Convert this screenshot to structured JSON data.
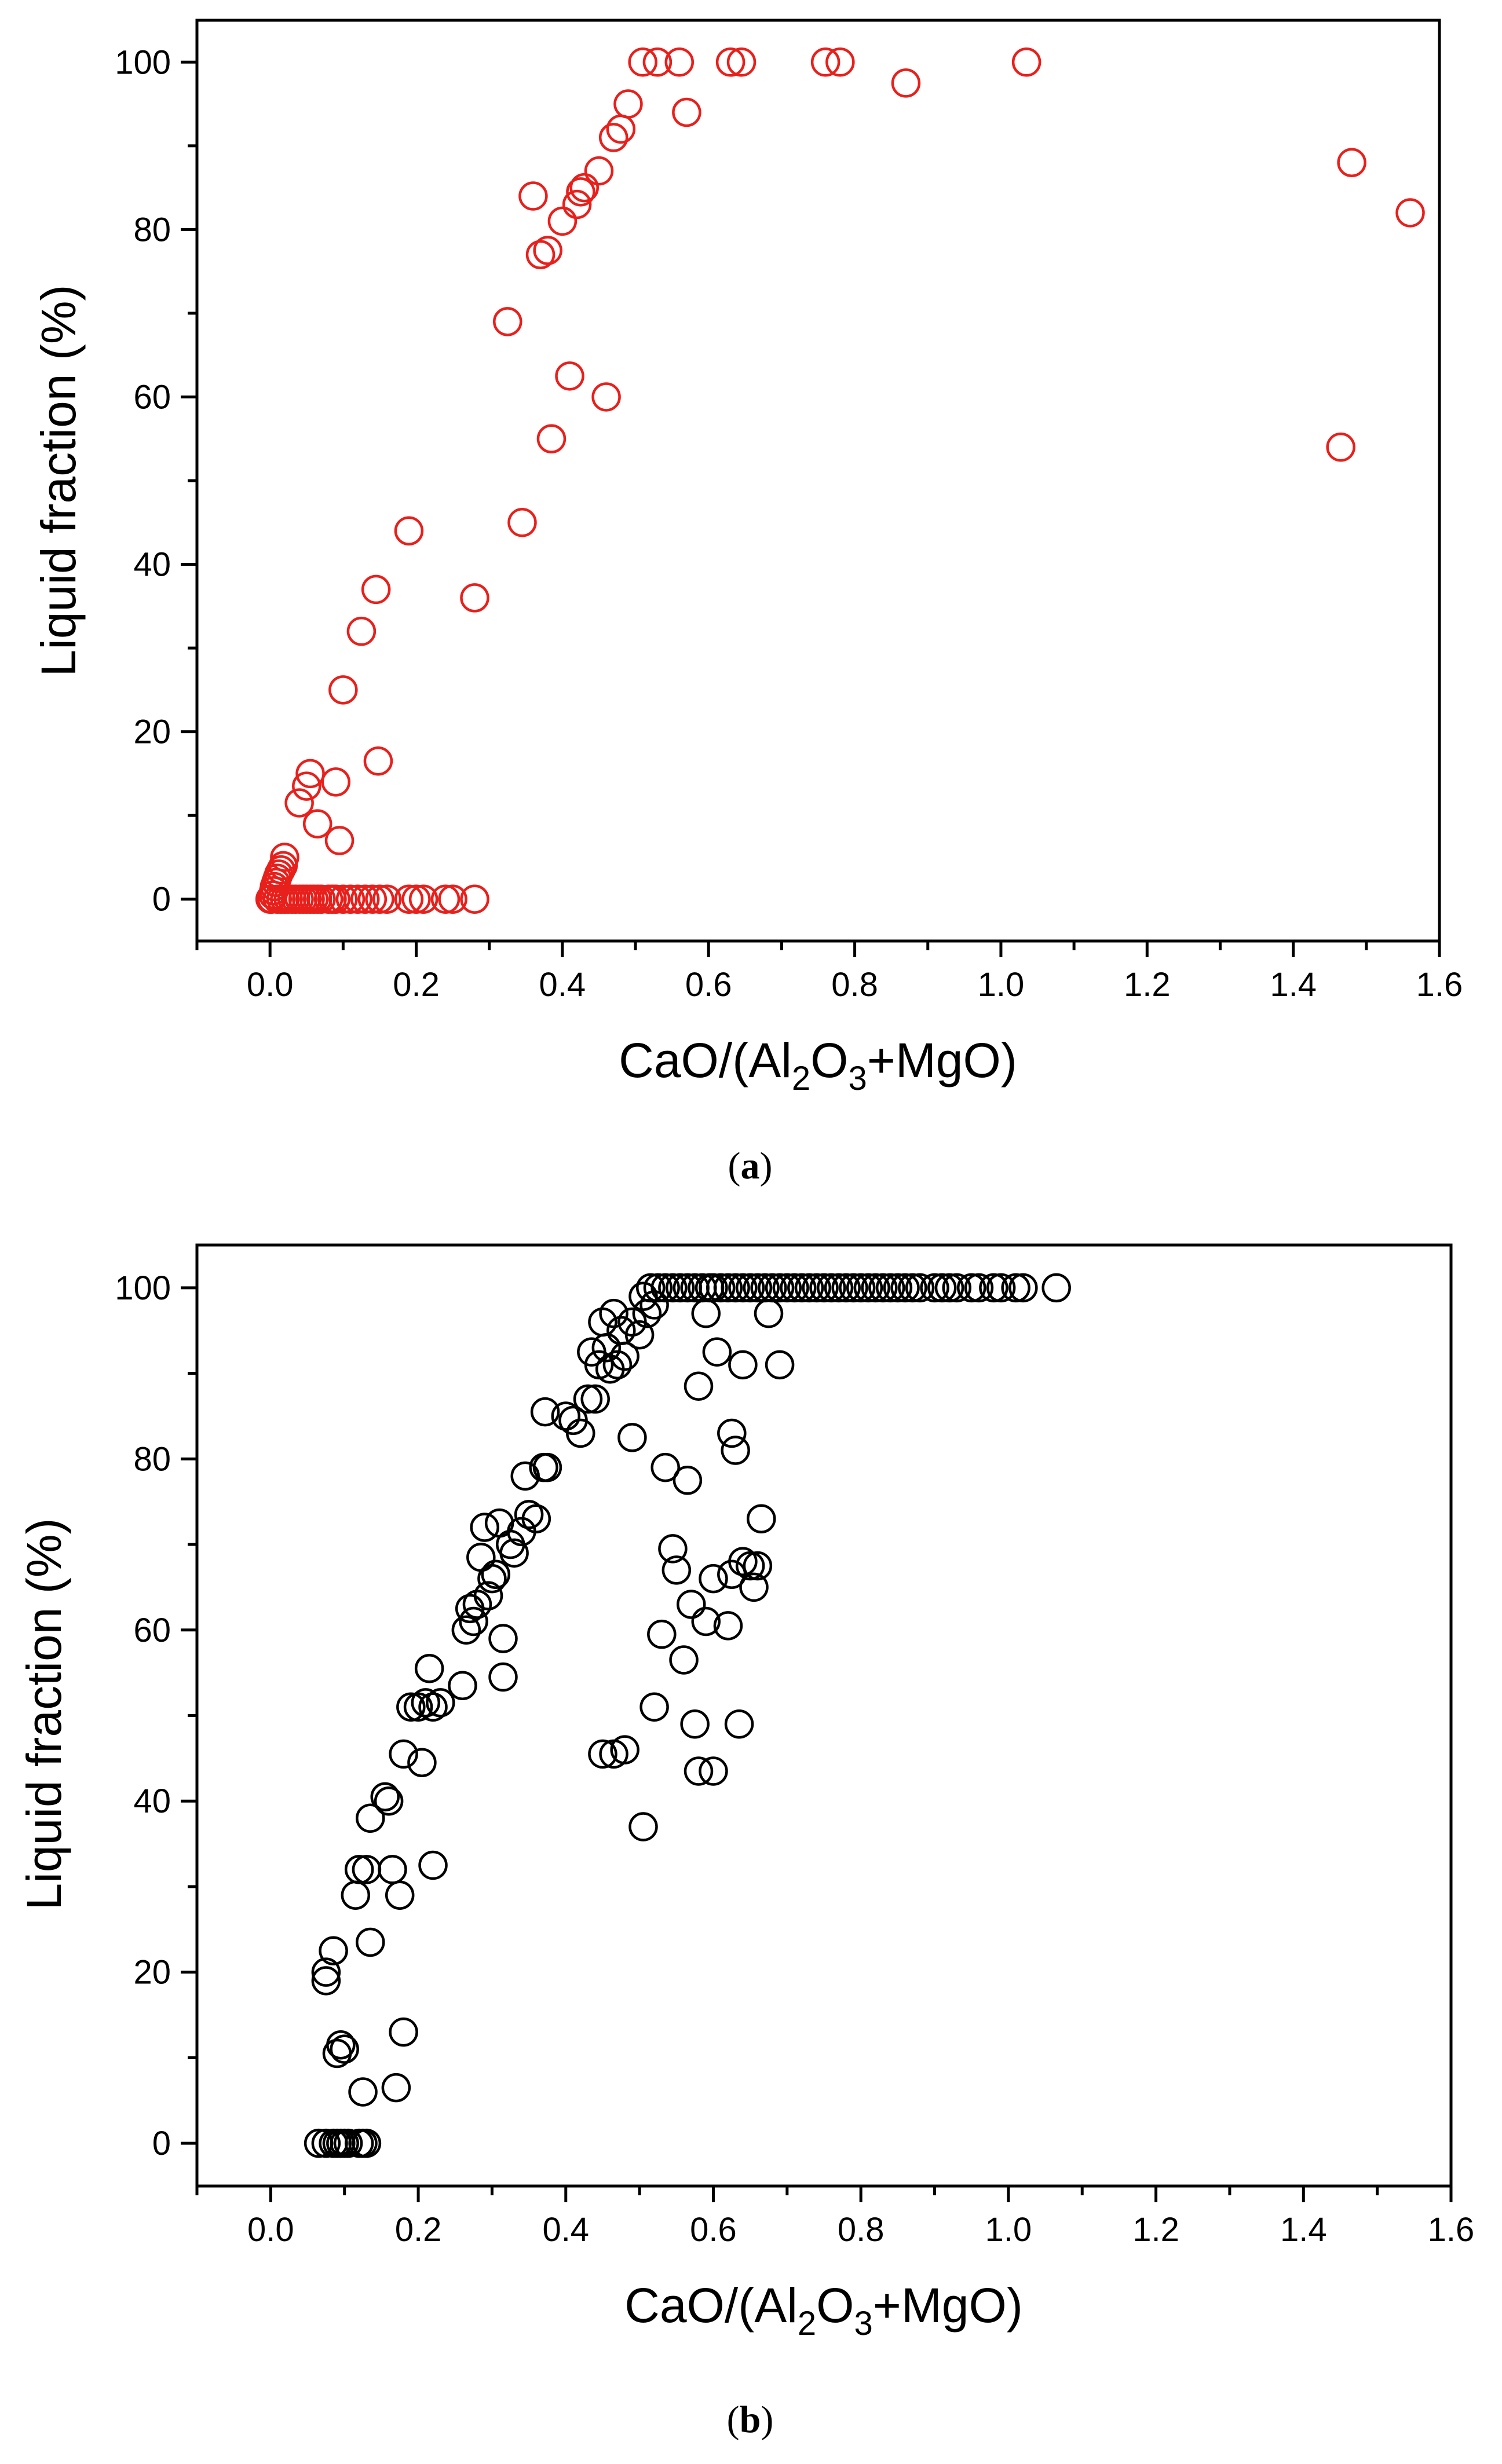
{
  "chart_data": [
    {
      "type": "scatter",
      "panel": "a",
      "caption_label": "a",
      "marker_color": "#e8201c",
      "xlabel": {
        "pre": "CaO/(Al",
        "sub1": "2",
        "mid": "O",
        "sub2": "3",
        "post": "+MgO)"
      },
      "ylabel": "Liquid fraction (%)",
      "xlim": [
        -0.1,
        1.6
      ],
      "ylim": [
        -5,
        105
      ],
      "xticks": [
        "0.0",
        "0.2",
        "0.4",
        "0.6",
        "0.8",
        "1.0",
        "1.2",
        "1.4",
        "1.6"
      ],
      "yticks": [
        "0",
        "20",
        "40",
        "60",
        "80",
        "100"
      ],
      "points": [
        [
          0.0,
          0
        ],
        [
          0.002,
          0
        ],
        [
          0.004,
          0.5
        ],
        [
          0.005,
          1
        ],
        [
          0.006,
          1.5
        ],
        [
          0.008,
          2
        ],
        [
          0.01,
          2.5
        ],
        [
          0.012,
          3
        ],
        [
          0.015,
          3.5
        ],
        [
          0.018,
          4
        ],
        [
          0.02,
          5
        ],
        [
          0.01,
          0
        ],
        [
          0.015,
          0
        ],
        [
          0.02,
          0
        ],
        [
          0.025,
          0
        ],
        [
          0.03,
          0
        ],
        [
          0.035,
          0
        ],
        [
          0.04,
          0
        ],
        [
          0.045,
          0
        ],
        [
          0.05,
          0
        ],
        [
          0.055,
          0
        ],
        [
          0.06,
          0
        ],
        [
          0.065,
          0
        ],
        [
          0.07,
          0
        ],
        [
          0.08,
          0
        ],
        [
          0.085,
          0
        ],
        [
          0.09,
          0
        ],
        [
          0.1,
          0
        ],
        [
          0.11,
          0
        ],
        [
          0.12,
          0
        ],
        [
          0.13,
          0
        ],
        [
          0.14,
          0
        ],
        [
          0.15,
          0
        ],
        [
          0.16,
          0
        ],
        [
          0.19,
          0
        ],
        [
          0.2,
          0
        ],
        [
          0.21,
          0
        ],
        [
          0.24,
          0
        ],
        [
          0.25,
          0
        ],
        [
          0.28,
          0
        ],
        [
          0.04,
          11.5
        ],
        [
          0.05,
          13.5
        ],
        [
          0.055,
          15
        ],
        [
          0.065,
          9
        ],
        [
          0.09,
          14
        ],
        [
          0.095,
          7
        ],
        [
          0.1,
          25
        ],
        [
          0.125,
          32
        ],
        [
          0.145,
          37
        ],
        [
          0.148,
          16.5
        ],
        [
          0.19,
          44
        ],
        [
          0.28,
          36
        ],
        [
          0.325,
          69
        ],
        [
          0.345,
          45
        ],
        [
          0.36,
          84
        ],
        [
          0.37,
          77
        ],
        [
          0.38,
          77.5
        ],
        [
          0.385,
          55
        ],
        [
          0.4,
          81
        ],
        [
          0.41,
          62.5
        ],
        [
          0.42,
          83
        ],
        [
          0.425,
          84.5
        ],
        [
          0.43,
          85
        ],
        [
          0.45,
          87
        ],
        [
          0.46,
          60
        ],
        [
          0.47,
          91
        ],
        [
          0.48,
          92
        ],
        [
          0.49,
          95
        ],
        [
          0.51,
          100
        ],
        [
          0.53,
          100
        ],
        [
          0.56,
          100
        ],
        [
          0.57,
          94
        ],
        [
          0.63,
          100
        ],
        [
          0.645,
          100
        ],
        [
          0.76,
          100
        ],
        [
          0.78,
          100
        ],
        [
          0.87,
          97.5
        ],
        [
          1.035,
          100
        ],
        [
          1.465,
          54
        ],
        [
          1.48,
          88
        ],
        [
          1.56,
          82
        ]
      ]
    },
    {
      "type": "scatter",
      "panel": "b",
      "caption_label": "b",
      "marker_color": "#000000",
      "xlabel": {
        "pre": "CaO/(Al",
        "sub1": "2",
        "mid": "O",
        "sub2": "3",
        "post": "+MgO)"
      },
      "ylabel": "Liquid fraction (%)",
      "xlim": [
        -0.1,
        1.6
      ],
      "ylim": [
        -5,
        105
      ],
      "xticks": [
        "0.0",
        "0.2",
        "0.4",
        "0.6",
        "0.8",
        "1.0",
        "1.2",
        "1.4",
        "1.6"
      ],
      "yticks": [
        "0",
        "20",
        "40",
        "60",
        "80",
        "100"
      ],
      "points": [
        [
          0.065,
          0
        ],
        [
          0.075,
          0
        ],
        [
          0.085,
          0
        ],
        [
          0.09,
          0
        ],
        [
          0.095,
          0
        ],
        [
          0.1,
          0
        ],
        [
          0.105,
          0
        ],
        [
          0.12,
          0
        ],
        [
          0.125,
          0
        ],
        [
          0.13,
          0
        ],
        [
          0.075,
          19
        ],
        [
          0.075,
          20
        ],
        [
          0.085,
          22.5
        ],
        [
          0.09,
          10.5
        ],
        [
          0.095,
          11.5
        ],
        [
          0.1,
          11
        ],
        [
          0.115,
          29
        ],
        [
          0.12,
          32
        ],
        [
          0.125,
          6
        ],
        [
          0.13,
          32
        ],
        [
          0.135,
          38
        ],
        [
          0.135,
          23.5
        ],
        [
          0.155,
          40.5
        ],
        [
          0.16,
          40
        ],
        [
          0.165,
          32
        ],
        [
          0.17,
          6.5
        ],
        [
          0.175,
          29
        ],
        [
          0.18,
          13
        ],
        [
          0.18,
          45.5
        ],
        [
          0.19,
          51
        ],
        [
          0.2,
          51
        ],
        [
          0.205,
          44.5
        ],
        [
          0.21,
          51.5
        ],
        [
          0.215,
          55.5
        ],
        [
          0.22,
          51
        ],
        [
          0.22,
          32.5
        ],
        [
          0.23,
          51.5
        ],
        [
          0.26,
          53.5
        ],
        [
          0.265,
          60
        ],
        [
          0.27,
          62.5
        ],
        [
          0.275,
          61
        ],
        [
          0.28,
          63
        ],
        [
          0.285,
          68.5
        ],
        [
          0.29,
          72
        ],
        [
          0.295,
          64
        ],
        [
          0.3,
          66
        ],
        [
          0.305,
          66.5
        ],
        [
          0.31,
          72.5
        ],
        [
          0.315,
          59
        ],
        [
          0.315,
          54.5
        ],
        [
          0.325,
          70
        ],
        [
          0.33,
          69
        ],
        [
          0.34,
          71.5
        ],
        [
          0.345,
          78
        ],
        [
          0.35,
          73.5
        ],
        [
          0.36,
          73
        ],
        [
          0.37,
          79
        ],
        [
          0.372,
          85.5
        ],
        [
          0.375,
          79
        ],
        [
          0.4,
          85
        ],
        [
          0.41,
          84.5
        ],
        [
          0.42,
          83
        ],
        [
          0.43,
          87
        ],
        [
          0.435,
          92.5
        ],
        [
          0.44,
          87
        ],
        [
          0.445,
          91
        ],
        [
          0.45,
          96
        ],
        [
          0.455,
          93
        ],
        [
          0.46,
          90.5
        ],
        [
          0.465,
          97
        ],
        [
          0.47,
          91
        ],
        [
          0.475,
          95
        ],
        [
          0.48,
          92
        ],
        [
          0.49,
          96
        ],
        [
          0.5,
          94.5
        ],
        [
          0.505,
          99
        ],
        [
          0.51,
          97
        ],
        [
          0.515,
          100
        ],
        [
          0.52,
          98
        ],
        [
          0.525,
          100
        ],
        [
          0.535,
          100
        ],
        [
          0.545,
          100
        ],
        [
          0.555,
          100
        ],
        [
          0.565,
          100
        ],
        [
          0.575,
          100
        ],
        [
          0.585,
          100
        ],
        [
          0.595,
          100
        ],
        [
          0.6,
          100
        ],
        [
          0.61,
          100
        ],
        [
          0.62,
          100
        ],
        [
          0.63,
          100
        ],
        [
          0.64,
          100
        ],
        [
          0.65,
          100
        ],
        [
          0.66,
          100
        ],
        [
          0.67,
          100
        ],
        [
          0.68,
          100
        ],
        [
          0.69,
          100
        ],
        [
          0.7,
          100
        ],
        [
          0.71,
          100
        ],
        [
          0.72,
          100
        ],
        [
          0.73,
          100
        ],
        [
          0.74,
          100
        ],
        [
          0.75,
          100
        ],
        [
          0.76,
          100
        ],
        [
          0.77,
          100
        ],
        [
          0.78,
          100
        ],
        [
          0.79,
          100
        ],
        [
          0.8,
          100
        ],
        [
          0.81,
          100
        ],
        [
          0.82,
          100
        ],
        [
          0.83,
          100
        ],
        [
          0.84,
          100
        ],
        [
          0.85,
          100
        ],
        [
          0.86,
          100
        ],
        [
          0.87,
          100
        ],
        [
          0.88,
          100
        ],
        [
          0.9,
          100
        ],
        [
          0.91,
          100
        ],
        [
          0.92,
          100
        ],
        [
          0.93,
          100
        ],
        [
          0.95,
          100
        ],
        [
          0.96,
          100
        ],
        [
          0.98,
          100
        ],
        [
          0.99,
          100
        ],
        [
          1.01,
          100
        ],
        [
          1.02,
          100
        ],
        [
          1.065,
          100
        ],
        [
          0.45,
          45.5
        ],
        [
          0.465,
          45.5
        ],
        [
          0.48,
          46
        ],
        [
          0.49,
          82.5
        ],
        [
          0.505,
          37
        ],
        [
          0.52,
          51
        ],
        [
          0.53,
          59.5
        ],
        [
          0.535,
          79
        ],
        [
          0.545,
          69.5
        ],
        [
          0.55,
          67
        ],
        [
          0.56,
          56.5
        ],
        [
          0.565,
          77.5
        ],
        [
          0.57,
          63
        ],
        [
          0.575,
          49
        ],
        [
          0.58,
          43.5
        ],
        [
          0.58,
          88.5
        ],
        [
          0.59,
          61
        ],
        [
          0.59,
          97
        ],
        [
          0.6,
          43.5
        ],
        [
          0.6,
          66
        ],
        [
          0.605,
          92.5
        ],
        [
          0.62,
          60.5
        ],
        [
          0.625,
          66.5
        ],
        [
          0.625,
          83
        ],
        [
          0.63,
          81
        ],
        [
          0.635,
          49
        ],
        [
          0.64,
          91
        ],
        [
          0.64,
          68
        ],
        [
          0.65,
          67.5
        ],
        [
          0.655,
          65
        ],
        [
          0.66,
          67.5
        ],
        [
          0.665,
          73
        ],
        [
          0.675,
          97
        ],
        [
          0.69,
          91
        ]
      ]
    }
  ]
}
